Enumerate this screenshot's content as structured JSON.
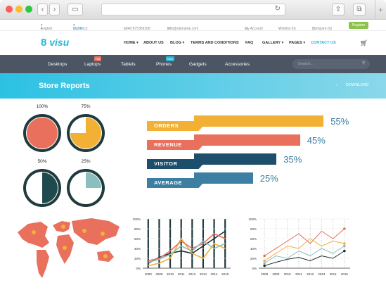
{
  "topbar": {
    "language": "English",
    "currency_label": "Currency:",
    "currency_value": "$USD",
    "phone": "+840 875369208",
    "email": "info@sitename.com",
    "my_account": "My Account",
    "wishlist": "Wishlist (0)",
    "compare": "Compare (0)",
    "register": "Register"
  },
  "nav": {
    "logo": "visu",
    "items": [
      "HOME",
      "ABOUT US",
      "BLOG",
      "TERMS AND CONDITIONS",
      "FAQ",
      "GALLERY",
      "PAGES",
      "CONTACT US"
    ]
  },
  "categories": {
    "items": [
      "Desktops",
      "Laptops",
      "Tablets",
      "Phones",
      "Gadgets",
      "Accessories"
    ],
    "laptops_badge": "Hot",
    "phones_badge": "New",
    "search_placeholder": "Search..."
  },
  "banner": {
    "title": "Store Reports",
    "download": "DOWNLOAD"
  },
  "pies": [
    {
      "label": "100%",
      "value": 100,
      "color": "#e8705c"
    },
    {
      "label": "75%",
      "value": 75,
      "color": "#f2b134"
    },
    {
      "label": "50%",
      "value": 50,
      "color": "#1f4a4d"
    },
    {
      "label": "25%",
      "value": 25,
      "color": "#8bbfbd"
    }
  ],
  "bars": [
    {
      "label": "ORDERS",
      "value": 55,
      "pct": "55%",
      "color": "#f2b134"
    },
    {
      "label": "REVENUE",
      "value": 45,
      "pct": "45%",
      "color": "#e8705c"
    },
    {
      "label": "VISITOR",
      "value": 35,
      "pct": "35%",
      "color": "#1d4e6b"
    },
    {
      "label": "AVERAGE",
      "value": 25,
      "pct": "25%",
      "color": "#3d7fa3"
    }
  ],
  "chart_data": [
    {
      "type": "line",
      "x": [
        "2008",
        "2009",
        "2010",
        "2011",
        "2012",
        "2013",
        "2014",
        "2015"
      ],
      "ylim": [
        0,
        100
      ],
      "yticks": [
        "100%",
        "80%",
        "60%",
        "40%",
        "20%",
        "0%"
      ],
      "series": [
        {
          "color": "#1f2d33",
          "values": [
            10,
            22,
            30,
            35,
            30,
            45,
            60,
            75
          ]
        },
        {
          "color": "#f2b134",
          "values": [
            5,
            10,
            20,
            60,
            30,
            20,
            50,
            40
          ]
        },
        {
          "color": "#e8705c",
          "values": [
            15,
            20,
            35,
            55,
            40,
            50,
            70,
            60
          ]
        },
        {
          "color": "#8bbfbd",
          "values": [
            12,
            18,
            28,
            45,
            35,
            55,
            40,
            50
          ]
        }
      ]
    },
    {
      "type": "line",
      "x": [
        "2008",
        "2009",
        "2010",
        "2011",
        "2012",
        "2013",
        "2014",
        "2015"
      ],
      "ylim": [
        0,
        100
      ],
      "yticks": [
        "100%",
        "80%",
        "60%",
        "40%",
        "20%",
        "0%"
      ],
      "series": [
        {
          "color": "#e8705c",
          "values": [
            25,
            40,
            55,
            70,
            50,
            75,
            60,
            80
          ]
        },
        {
          "color": "#f2b134",
          "values": [
            15,
            30,
            45,
            40,
            60,
            45,
            55,
            50
          ]
        },
        {
          "color": "#8bbfbd",
          "values": [
            10,
            25,
            20,
            35,
            25,
            40,
            30,
            45
          ]
        },
        {
          "color": "#1f2d33",
          "values": [
            5,
            12,
            18,
            22,
            15,
            25,
            20,
            35
          ]
        }
      ]
    }
  ]
}
